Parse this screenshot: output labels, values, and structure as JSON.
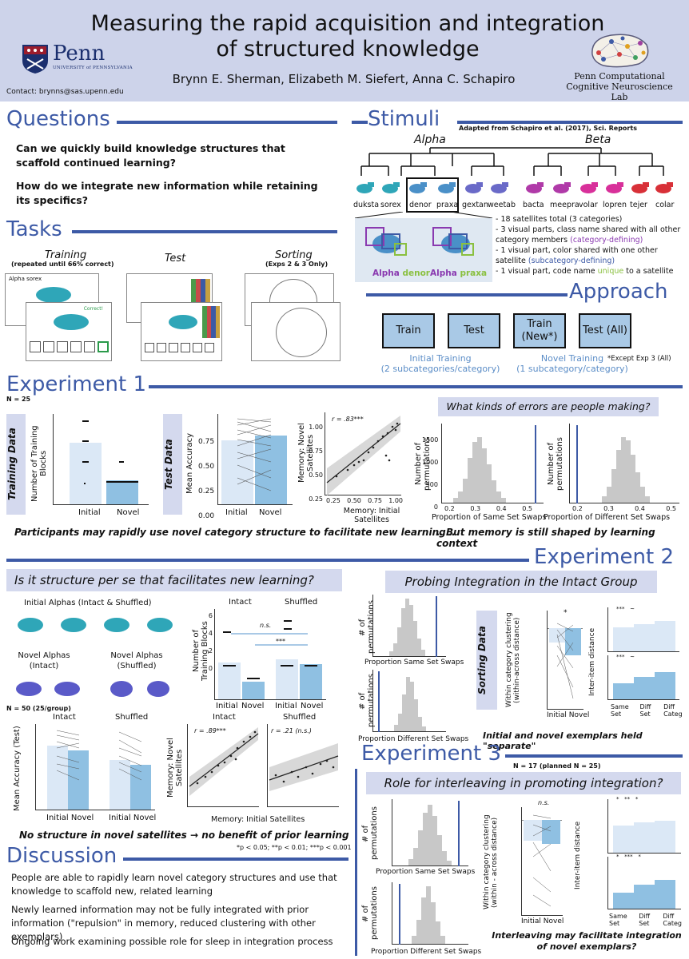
{
  "header": {
    "title_line1": "Measuring the rapid acquisition and integration",
    "title_line2": "of structured knowledge",
    "authors": "Brynn E. Sherman, Elizabeth M. Siefert, Anna C. Schapiro",
    "contact": "Contact: brynns@sas.upenn.edu",
    "penn_word": "Penn",
    "penn_sub": "UNIVERSITY of PENNSYLVANIA",
    "lab_line1": "Penn Computational",
    "lab_line2": "Cognitive Neuroscience Lab"
  },
  "questions": {
    "title": "Questions",
    "q1": "Can we quickly build knowledge structures that scaffold continued learning?",
    "q2": "How do we integrate new information while retaining its specifics?"
  },
  "stimuli": {
    "title": "Stimuli",
    "citation": "Adapted from Schapiro et al. (2017), Sci. Reports",
    "alpha": "Alpha",
    "beta": "Beta",
    "names": [
      "duksta",
      "sorex",
      "denor",
      "praxa",
      "gextan",
      "weetab",
      "bacta",
      "meepra",
      "volar",
      "lopren",
      "tejer",
      "colar"
    ],
    "bullet1": "- 18 satellites total (3 categories)",
    "bullet2a": "- 3 visual parts, class name shared with all other category members ",
    "bullet2b": "(category-defining)",
    "bullet3a": "- 1 visual part, color shared with one other satellite ",
    "bullet3b": "(subcategory-defining)",
    "bullet4a": "- 1 visual part, code name ",
    "bullet4b": "unique",
    "bullet4c": " to a satellite",
    "ex1_class": "Alpha",
    "ex1_name": "denor",
    "ex2_class": "Alpha",
    "ex2_name": "praxa"
  },
  "tasks": {
    "title": "Tasks",
    "training": "Training",
    "training_sub": "(repeated until 66% correct)",
    "test": "Test",
    "sorting": "Sorting",
    "sorting_sub": "(Exps 2 & 3 Only)",
    "screen_label": "Alpha sorex",
    "correct": "Correct!"
  },
  "approach": {
    "title": "Approach",
    "box1": "Train",
    "box2": "Test",
    "box3": "Train (New*)",
    "box4": "Test (All)",
    "initial": "Initial Training",
    "initial_sub": "(2 subcategories/category)",
    "novel": "Novel Training",
    "novel_sub": "(1 subcategory/category)",
    "footnote": "*Except Exp 3 (All)"
  },
  "exp1": {
    "title": "Experiment 1",
    "n": "N = 25",
    "training_data": "Training Data",
    "test_data": "Test Data",
    "ylab_train": "Number of Training Blocks",
    "ylab_test": "Mean Accuracy",
    "x_initial": "Initial",
    "x_novel": "Novel",
    "test_ticks": [
      "0.75",
      "0.50",
      "0.25",
      "0.00"
    ],
    "scatter_r": "r = .83***",
    "scatter_y": "Memory: Novel Satellites",
    "scatter_x": "Memory: Initial Satellites",
    "scatter_ticks_x": [
      "0.25",
      "0.50",
      "0.75",
      "1.00"
    ],
    "scatter_ticks_y": [
      "1.00",
      "0.75",
      "0.50",
      "0.25"
    ],
    "errors_q": "What kinds of errors are people making?",
    "hist_ylab": "Number of permutations",
    "hist1_x": "Proportion of Same Set Swaps",
    "hist2_x": "Proportion of Different Set Swaps",
    "hist_yticks": [
      "1500",
      "1000",
      "500",
      "0"
    ],
    "hist_xticks": [
      "0.2",
      "0.3",
      "0.4",
      "0.5"
    ],
    "takeaway1": "Participants may rapidly use novel category structure to facilitate new learning…",
    "takeaway2": "…But memory is still shaped by learning context"
  },
  "exp2": {
    "title": "Experiment 2",
    "q_structure": "Is it structure per se that facilitates new learning?",
    "q_probe": "Probing Integration in the Intact Group",
    "initial_alphas": "Initial Alphas (Intact & Shuffled)",
    "novel_intact": "Novel Alphas (Intact)",
    "novel_shuffled": "Novel Alphas (Shuffled)",
    "n": "N = 50 (25/group)",
    "intact": "Intact",
    "shuffled": "Shuffled",
    "ns": "n.s.",
    "stars3": "***",
    "ylab_blocks": "Number of Training Blocks",
    "ylab_acc": "Mean Accuracy (Test)",
    "x_initial": "Initial",
    "x_novel": "Novel",
    "r_intact": "r = .89***",
    "r_shuffled": "r = .21 (n.s.)",
    "mem_y": "Memory: Novel Satellites",
    "mem_x": "Memory: Initial Satellites",
    "takeaway": "No structure in novel satellites → no benefit of prior learning",
    "pvals": "*p < 0.05; **p < 0.01; ***p < 0.001",
    "hist_ylab": "# of permutations",
    "hist1_x": "Proportion Same Set Swaps",
    "hist2_x": "Proportion Different Set Swaps",
    "sorting_data": "Sorting Data",
    "clust_ylab": "Within category clustering (within-across distance)",
    "dist_ylab": "Inter-item distance",
    "x_same": "Same Set",
    "x_diff": "Diff Set",
    "x_categ": "Diff Categ",
    "held_sep": "Initial and novel exemplars held \"separate\""
  },
  "exp3": {
    "title": "Experiment 3",
    "n": "N = 17 (planned N = 25)",
    "q": "Role for interleaving in promoting integration?",
    "hist_ylab": "# of permutations",
    "hist1_x": "Proportion Same Set Swaps",
    "hist2_x": "Proportion Different Set Swaps",
    "clust_ylab": "Within category clustering (within - across distance)",
    "dist_ylab": "Inter-item distance",
    "ns": "n.s.",
    "x_initial": "Initial",
    "x_novel": "Novel",
    "takeaway": "Interleaving may facilitate integration of novel exemplars?"
  },
  "discussion": {
    "title": "Discussion",
    "p1": "People are able to rapidly learn novel category structures and use that knowledge to scaffold new, related learning",
    "p2": "Newly learned information may not be fully integrated with prior information (\"repulsion\" in memory, reduced clustering with other exemplars)",
    "p3": "Ongoing work examining possible role for sleep in integration process"
  },
  "colors": {
    "accent": "#3d5aa6",
    "panel": "#d4d9ee",
    "bar_light": "#dbe8f6",
    "bar_dark": "#8fc0e2"
  }
}
